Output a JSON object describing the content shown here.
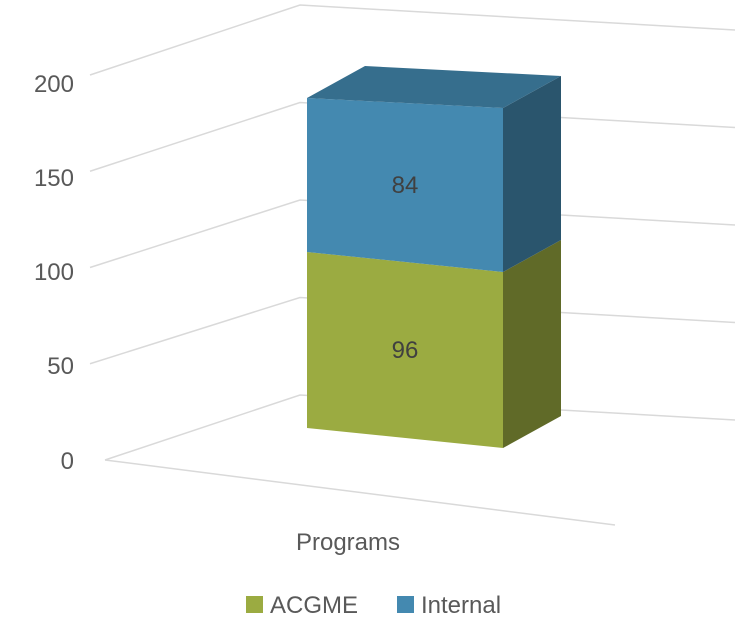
{
  "chart_data": {
    "type": "bar",
    "subtype": "stacked-3d-column",
    "categories": [
      "Programs"
    ],
    "series": [
      {
        "name": "ACGME",
        "values": [
          96
        ],
        "color": "#9bab41"
      },
      {
        "name": "Internal",
        "values": [
          84
        ],
        "color": "#4489b0"
      }
    ],
    "ylim": [
      0,
      200
    ],
    "y_ticks": [
      "0",
      "50",
      "100",
      "150",
      "200"
    ],
    "grid": true,
    "legend": "bottom",
    "title": "",
    "xlabel": "",
    "ylabel": ""
  }
}
